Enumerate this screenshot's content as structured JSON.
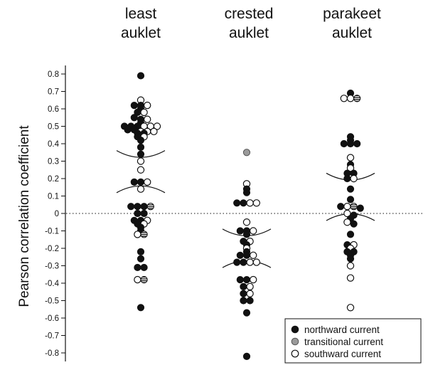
{
  "chart_data": {
    "type": "scatter",
    "categories": [
      [
        "least",
        "auklet"
      ],
      [
        "crested",
        "auklet"
      ],
      [
        "parakeet",
        "auklet"
      ]
    ],
    "ylabel": "Pearson correlation coefficient",
    "ylim": [
      -0.8,
      0.8
    ],
    "yticks": [
      "0.8",
      "0.7",
      "0.6",
      "0.5",
      "0.4",
      "0.3",
      "0.2",
      "0.1",
      "0",
      "-0.1",
      "-0.2",
      "-0.3",
      "-0.4",
      "-0.5",
      "-0.6",
      "-0.7",
      "-0.8"
    ],
    "reference_line": 0,
    "legend_placement": "bottom-right",
    "legend": [
      {
        "key": "northward",
        "label": "northward current",
        "color": "#111111"
      },
      {
        "key": "transitional",
        "label": "transitional current",
        "color": "#9a9a9a"
      },
      {
        "key": "southward",
        "label": "southward current",
        "color": "#ffffff"
      }
    ],
    "brackets": [
      {
        "category": 0,
        "values": [
          0.32,
          0.16
        ]
      },
      {
        "category": 1,
        "values": [
          -0.13,
          -0.27
        ]
      },
      {
        "category": 2,
        "values": [
          0.19,
          0
        ]
      }
    ],
    "points": [
      {
        "category": 0,
        "type": "northward",
        "values": [
          0.79,
          0.62,
          0.62,
          0.6,
          0.58,
          0.55,
          0.54,
          0.52,
          0.5,
          0.5,
          0.5,
          0.48,
          0.48,
          0.46,
          0.46,
          0.44,
          0.42,
          0.38,
          0.34,
          0.18,
          0.18,
          0.04,
          0.04,
          0.04,
          0,
          0,
          -0.04,
          -0.04,
          -0.06,
          -0.08,
          -0.1,
          -0.22,
          -0.26,
          -0.31,
          -0.31,
          -0.54
        ]
      },
      {
        "category": 0,
        "type": "southward",
        "values": [
          0.65,
          0.62,
          0.58,
          0.54,
          0.5,
          0.5,
          0.5,
          0.47,
          0.47,
          0.47,
          0.44,
          0.3,
          0.25,
          0.18,
          0.14,
          -0.04,
          -0.06,
          -0.12,
          -0.38
        ]
      },
      {
        "category": 0,
        "type": "striped",
        "values": [
          0.04,
          -0.38,
          -0.12
        ]
      },
      {
        "category": 1,
        "type": "northward",
        "values": [
          0.14,
          0.12,
          0.06,
          0.06,
          -0.1,
          -0.1,
          -0.12,
          -0.16,
          -0.18,
          -0.22,
          -0.24,
          -0.24,
          -0.28,
          -0.28,
          -0.38,
          -0.38,
          -0.42,
          -0.46,
          -0.5,
          -0.5,
          -0.57,
          -0.82
        ]
      },
      {
        "category": 1,
        "type": "southward",
        "values": [
          0.17,
          0.06,
          0.06,
          -0.05,
          -0.1,
          -0.16,
          -0.2,
          -0.24,
          -0.28,
          -0.28,
          -0.38,
          -0.42,
          -0.46
        ]
      },
      {
        "category": 1,
        "type": "transitional",
        "values": [
          0.35
        ]
      },
      {
        "category": 2,
        "type": "northward",
        "values": [
          0.69,
          0.44,
          0.42,
          0.4,
          0.4,
          0.4,
          0.28,
          0.23,
          0.23,
          0.2,
          0.14,
          0.08,
          0.04,
          0.03,
          -0.01,
          -0.03,
          -0.06,
          -0.12,
          -0.18,
          -0.22,
          -0.22,
          -0.24,
          -0.26
        ]
      },
      {
        "category": 2,
        "type": "southward",
        "values": [
          0.66,
          0.66,
          0.32,
          0.26,
          0.2,
          0.04,
          0,
          -0.05,
          -0.18,
          -0.2,
          -0.3,
          -0.37,
          -0.54
        ]
      },
      {
        "category": 2,
        "type": "striped",
        "values": [
          0.66,
          0.04
        ]
      }
    ]
  }
}
